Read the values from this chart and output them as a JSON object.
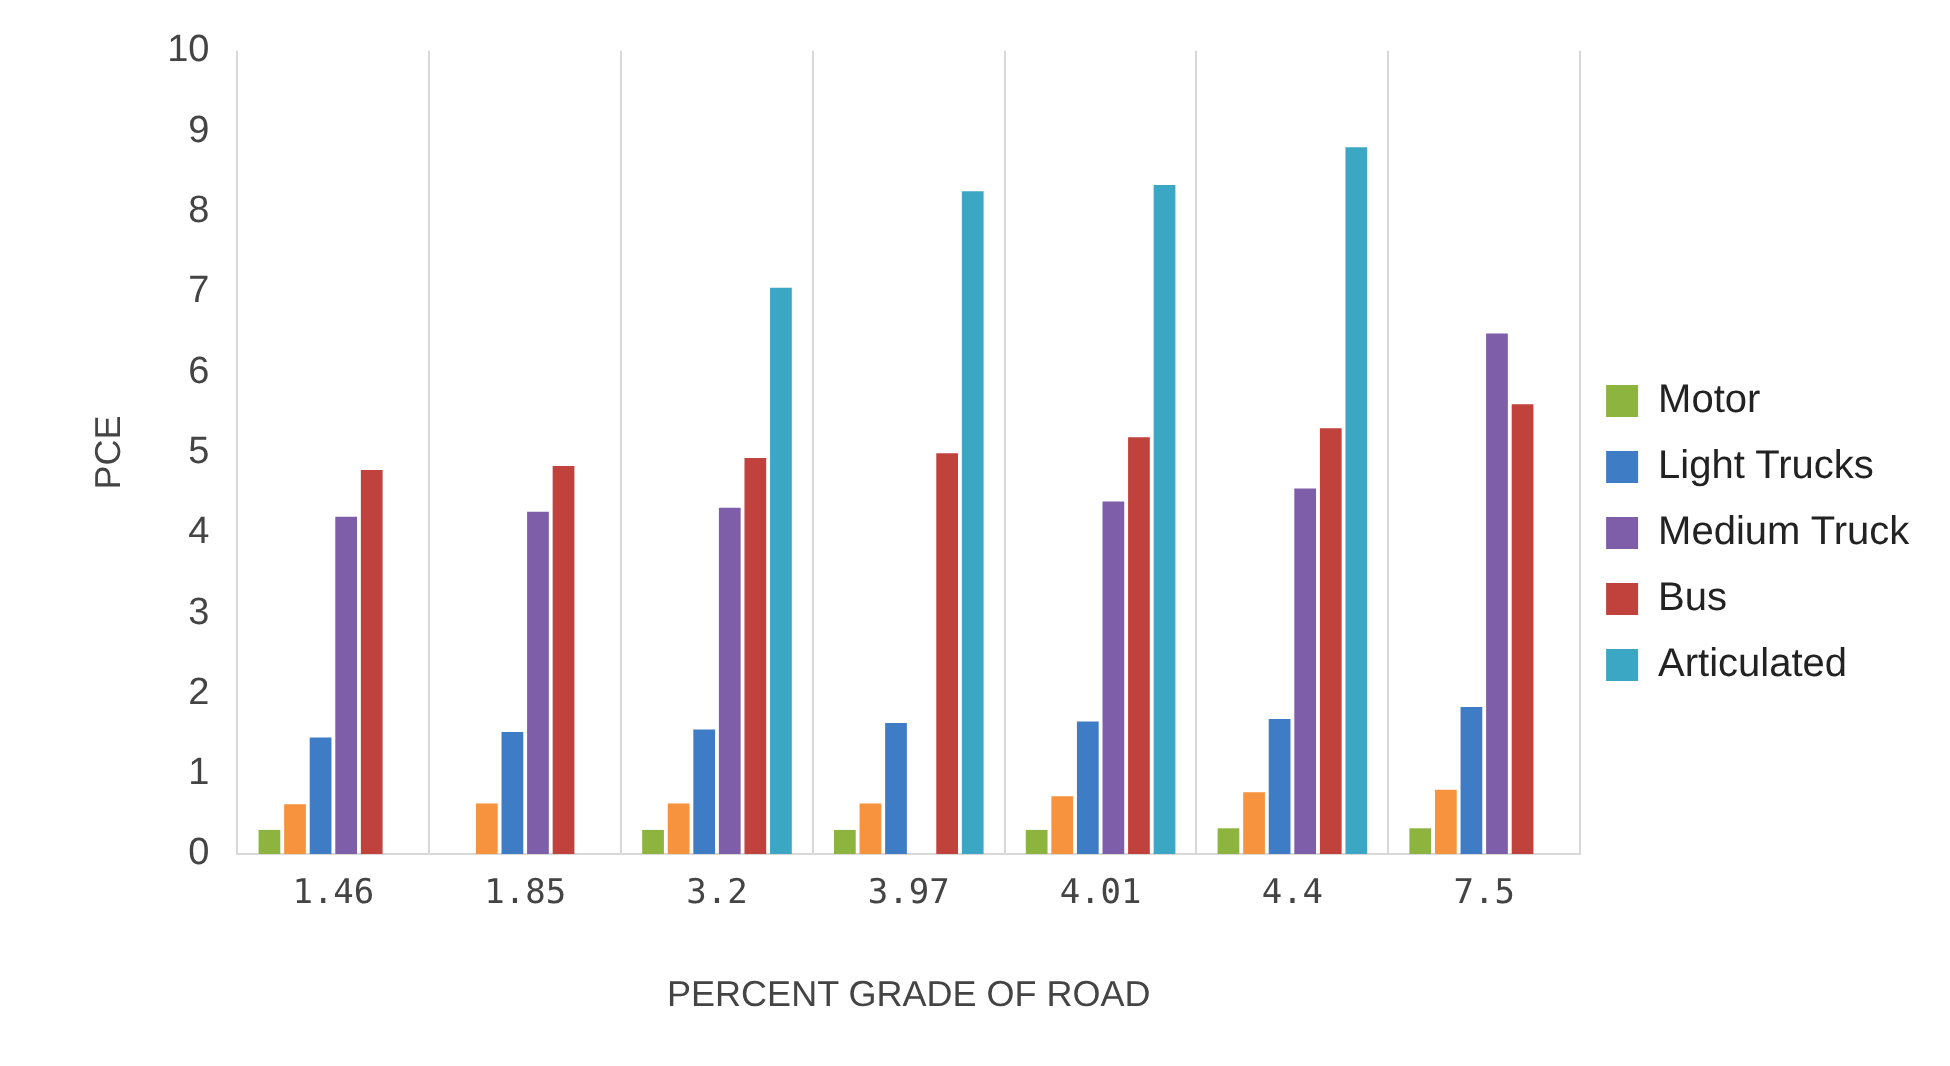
{
  "chart_data": {
    "type": "bar",
    "xlabel": "PERCENT GRADE OF ROAD",
    "ylabel": "PCE",
    "categories": [
      "1.46",
      "1.85",
      "3.2",
      "3.97",
      "4.01",
      "4.4",
      "7.5"
    ],
    "series": [
      {
        "name": "Motor",
        "color": "#8cb43e",
        "values": [
          0.3,
          null,
          0.3,
          0.3,
          0.3,
          0.32,
          0.32
        ]
      },
      {
        "color": "#f7923f",
        "values": [
          0.62,
          0.63,
          0.63,
          0.63,
          0.72,
          0.77,
          0.8
        ]
      },
      {
        "name": "Light Trucks",
        "color": "#3f7cc6",
        "values": [
          1.45,
          1.52,
          1.55,
          1.63,
          1.65,
          1.68,
          1.83
        ]
      },
      {
        "name": "Medium Truck",
        "color": "#7e5ea8",
        "values": [
          4.2,
          4.26,
          4.31,
          null,
          4.39,
          4.55,
          6.48
        ]
      },
      {
        "name": "Bus",
        "color": "#c1413d",
        "values": [
          4.78,
          4.83,
          4.93,
          4.99,
          5.19,
          5.3,
          5.6
        ]
      },
      {
        "name": "Articulated",
        "color": "#3ba7c4",
        "values": [
          null,
          null,
          7.05,
          8.25,
          8.33,
          8.8,
          null
        ]
      }
    ],
    "ylim": [
      0,
      10
    ],
    "yticks": [
      0,
      1,
      2,
      3,
      4,
      5,
      6,
      7,
      8,
      9,
      10
    ],
    "grid": "x",
    "legend": "right"
  }
}
